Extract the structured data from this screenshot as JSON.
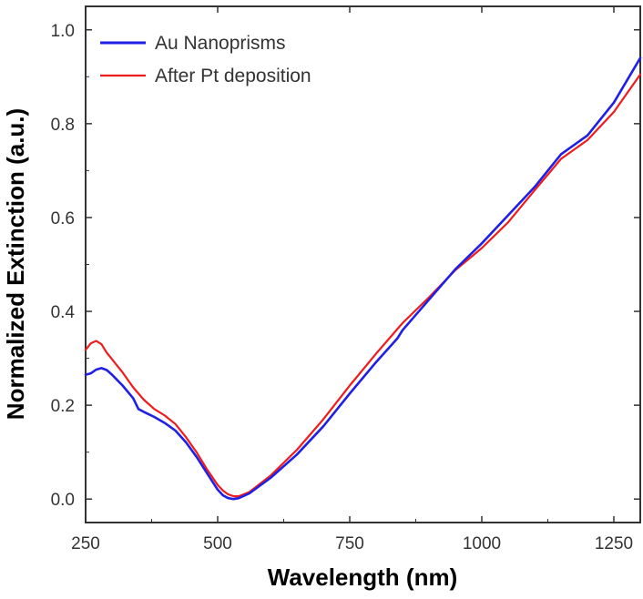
{
  "chart_data": {
    "type": "line",
    "title": "",
    "xlabel": "Wavelength (nm)",
    "ylabel": "Normalized Extinction (a.u.)",
    "xlim": [
      250,
      1300
    ],
    "ylim": [
      -0.05,
      1.05
    ],
    "xticks": [
      250,
      500,
      750,
      1000,
      1250
    ],
    "xtick_labels": [
      "250",
      "500",
      "750",
      "1000",
      "1250"
    ],
    "yticks": [
      0.0,
      0.2,
      0.4,
      0.6,
      0.8,
      1.0
    ],
    "ytick_labels": [
      "0.0",
      "0.2",
      "0.4",
      "0.6",
      "0.8",
      "1.0"
    ],
    "grid": false,
    "legend_position": "top-left",
    "series": [
      {
        "name": "Au Nanoprisms",
        "color": "#1f1fe6",
        "x": [
          250,
          260,
          270,
          280,
          290,
          300,
          320,
          340,
          350,
          360,
          380,
          400,
          420,
          440,
          460,
          480,
          500,
          510,
          520,
          530,
          540,
          560,
          600,
          650,
          700,
          750,
          800,
          840,
          850,
          900,
          950,
          1000,
          1050,
          1100,
          1150,
          1200,
          1250,
          1300
        ],
        "y": [
          0.265,
          0.268,
          0.276,
          0.279,
          0.275,
          0.265,
          0.242,
          0.215,
          0.192,
          0.186,
          0.175,
          0.162,
          0.146,
          0.121,
          0.09,
          0.055,
          0.02,
          0.008,
          0.002,
          0.0,
          0.002,
          0.012,
          0.045,
          0.095,
          0.155,
          0.225,
          0.292,
          0.342,
          0.36,
          0.425,
          0.49,
          0.545,
          0.605,
          0.665,
          0.735,
          0.775,
          0.845,
          0.94
        ]
      },
      {
        "name": "After Pt deposition",
        "color": "#ee1c1c",
        "x": [
          250,
          260,
          270,
          280,
          290,
          300,
          320,
          340,
          360,
          380,
          400,
          420,
          440,
          460,
          480,
          500,
          510,
          520,
          530,
          540,
          560,
          600,
          650,
          700,
          750,
          800,
          850,
          900,
          950,
          1000,
          1050,
          1100,
          1150,
          1200,
          1250,
          1300
        ],
        "y": [
          0.318,
          0.332,
          0.337,
          0.33,
          0.312,
          0.298,
          0.27,
          0.238,
          0.212,
          0.192,
          0.178,
          0.16,
          0.132,
          0.1,
          0.063,
          0.03,
          0.018,
          0.01,
          0.006,
          0.006,
          0.015,
          0.05,
          0.105,
          0.17,
          0.242,
          0.31,
          0.375,
          0.43,
          0.488,
          0.535,
          0.59,
          0.658,
          0.725,
          0.765,
          0.825,
          0.905
        ]
      }
    ]
  }
}
